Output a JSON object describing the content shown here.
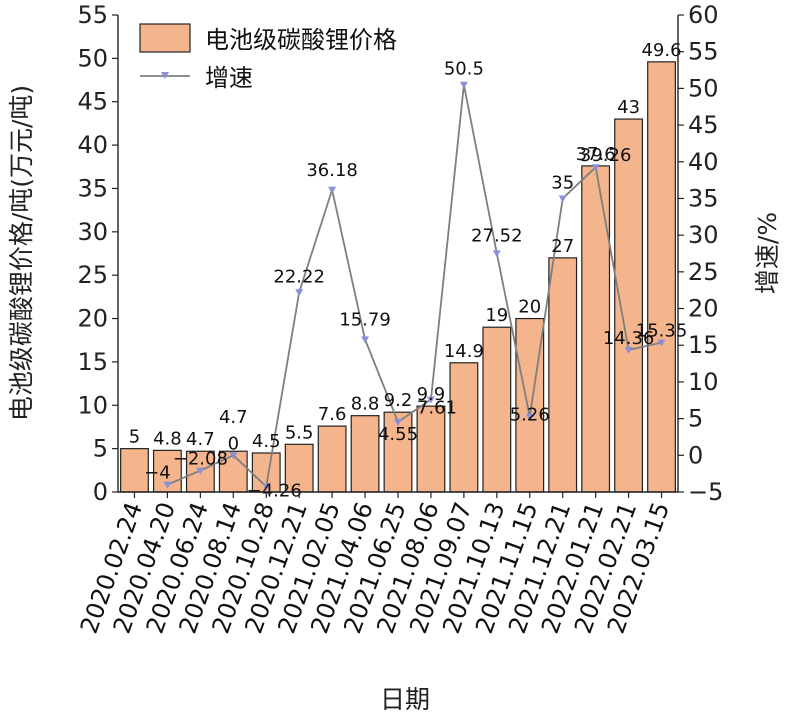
{
  "chart_data": {
    "type": "bar",
    "categories": [
      "2020.02.24",
      "2020.04.20",
      "2020.06.24",
      "2020.08.14",
      "2020.10.28",
      "2020.12.21",
      "2021.02.05",
      "2021.04.06",
      "2021.06.25",
      "2021.08.06",
      "2021.09.07",
      "2021.10.13",
      "2021.11.15",
      "2021.12.21",
      "2022.01.21",
      "2022.02.21",
      "2022.03.15"
    ],
    "xlabel": "日期",
    "ylabel": "电池级碳酸锂价格/吨(万元/吨)",
    "y2label": "增速/%",
    "ylim": [
      0,
      55
    ],
    "y2lim": [
      -5,
      60
    ],
    "yticks": [
      0,
      5,
      10,
      15,
      20,
      25,
      30,
      35,
      40,
      45,
      50,
      55
    ],
    "y2ticks": [
      -5,
      0,
      5,
      10,
      15,
      20,
      25,
      30,
      35,
      40,
      45,
      50,
      55,
      60
    ],
    "legend_position": "top-left",
    "series": [
      {
        "name": "电池级碳酸锂价格",
        "type": "bar",
        "axis": "left",
        "color": "#F4B48C",
        "values": [
          5,
          4.8,
          4.7,
          4.7,
          4.5,
          5.5,
          7.6,
          8.8,
          9.2,
          9.9,
          14.9,
          19,
          20,
          27,
          37.6,
          43,
          49.6
        ],
        "value_labels": [
          "5",
          "4.8",
          "4.7",
          "4.7",
          "4.5",
          "5.5",
          "7.6",
          "8.8",
          "9.2",
          "9.9",
          "14.9",
          "19",
          "20",
          "27",
          "37.6",
          "43",
          "49.6"
        ]
      },
      {
        "name": "增速",
        "type": "line",
        "axis": "right",
        "color": "#7F7F7F",
        "marker_color": "#8A8FD8",
        "values": [
          null,
          -4,
          -2.08,
          0,
          -4.26,
          22.22,
          36.18,
          15.79,
          4.55,
          7.61,
          50.5,
          27.52,
          5.26,
          35,
          39.26,
          14.36,
          15.35
        ],
        "value_labels": [
          "",
          "−4",
          "−2.08",
          "0",
          "−4.26",
          "22.22",
          "36.18",
          "15.79",
          "4.55",
          "7.61",
          "50.5",
          "27.52",
          "5.26",
          "35",
          "39.26",
          "14.36",
          "15.35"
        ]
      }
    ]
  }
}
